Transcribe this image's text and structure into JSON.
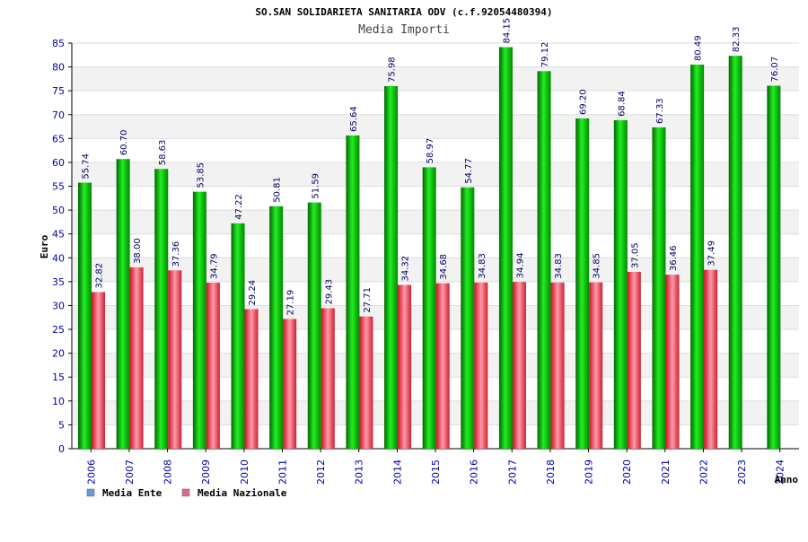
{
  "chart_data": {
    "type": "bar",
    "title": "SO.SAN SOLIDARIETA SANITARIA ODV (c.f.92054480394)",
    "subtitle": "Media Importi",
    "ylabel": "Euro",
    "xlabel": "Anno",
    "ylim": [
      0,
      85
    ],
    "ytick_step": 5,
    "grid": "horizontal bands",
    "legend_position": "bottom-left",
    "categories": [
      "2006",
      "2007",
      "2008",
      "2009",
      "2010",
      "2011",
      "2012",
      "2013",
      "2014",
      "2015",
      "2016",
      "2017",
      "2018",
      "2019",
      "2020",
      "2021",
      "2022",
      "2023",
      "2024"
    ],
    "series": [
      {
        "name": "Media Ente",
        "color": "#00aa00",
        "legend_color": "#6699dd",
        "values": [
          55.74,
          60.7,
          58.63,
          53.85,
          47.22,
          50.81,
          51.59,
          65.64,
          75.98,
          58.97,
          54.77,
          84.15,
          79.12,
          69.2,
          68.84,
          67.33,
          80.49,
          82.33,
          76.07
        ],
        "labels": [
          "55.74",
          "60.70",
          "58.63",
          "53.85",
          "47.22",
          "50.81",
          "51.59",
          "65.64",
          "75.98",
          "58.97",
          "54.77",
          "84.15",
          "79.12",
          "69.20",
          "68.84",
          "67.33",
          "80.49",
          "82.33",
          "76.07"
        ]
      },
      {
        "name": "Media Nazionale",
        "color": "#dd3344",
        "legend_color": "#dd6699",
        "values": [
          32.82,
          38.0,
          37.36,
          34.79,
          29.24,
          27.19,
          29.43,
          27.71,
          34.32,
          34.68,
          34.83,
          34.94,
          34.83,
          34.85,
          37.05,
          36.46,
          37.49,
          null,
          null
        ],
        "labels": [
          "32.82",
          "38.00",
          "37.36",
          "34.79",
          "29.24",
          "27.19",
          "29.43",
          "27.71",
          "34.32",
          "34.68",
          "34.83",
          "34.94",
          "34.83",
          "34.85",
          "37.05",
          "36.46",
          "37.49",
          null,
          null
        ]
      }
    ]
  }
}
